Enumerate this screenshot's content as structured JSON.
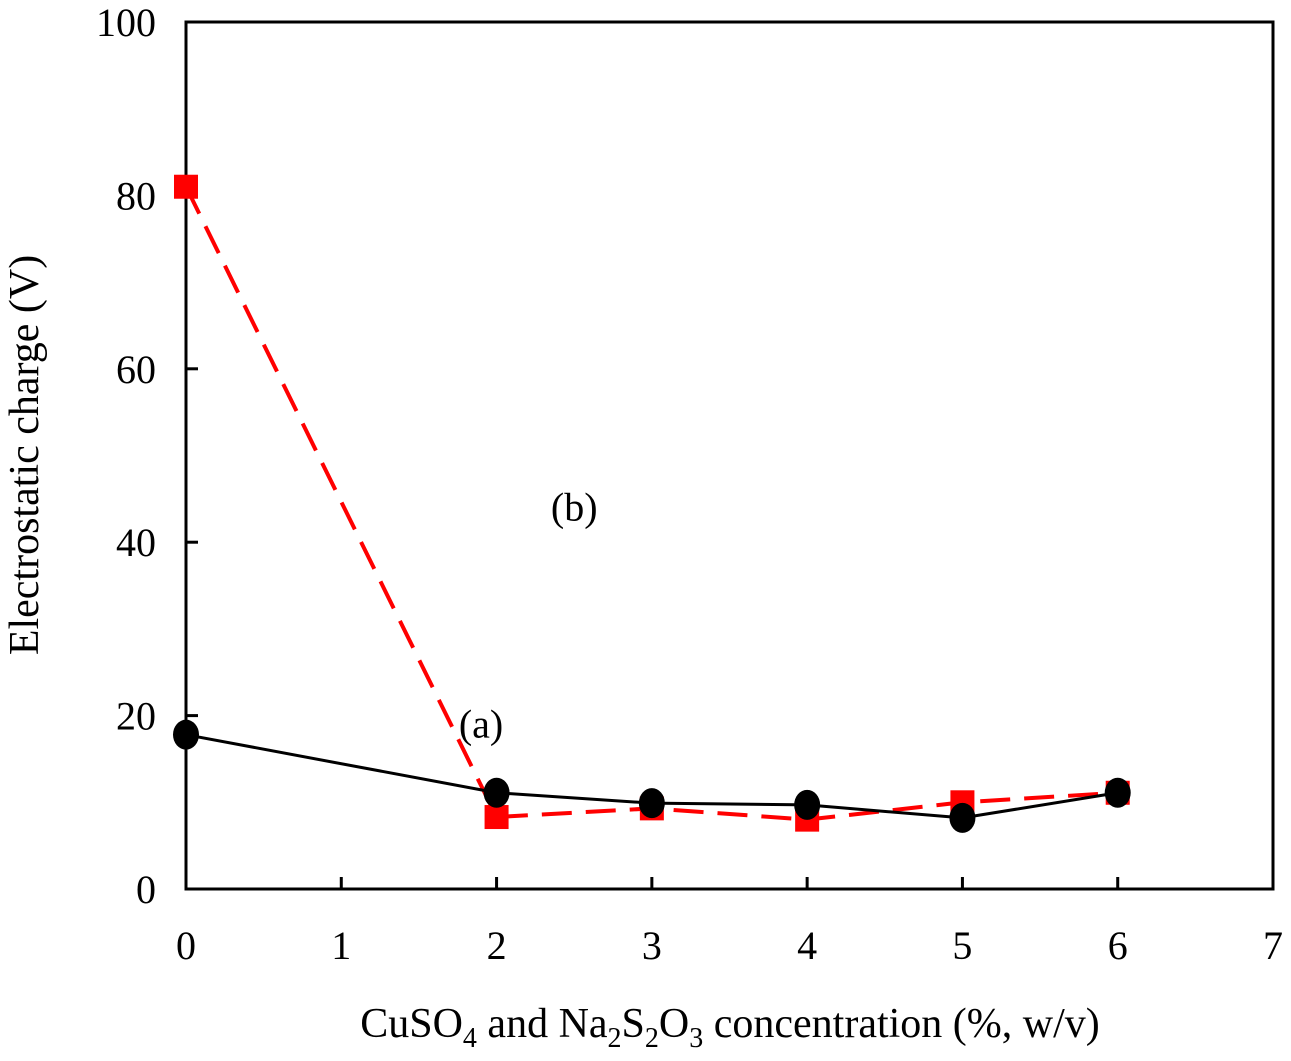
{
  "chart_data": {
    "type": "line",
    "title": "",
    "xlabel_parts": [
      "CuSO",
      "4",
      " and Na",
      "2",
      "S",
      "2",
      "O",
      "3",
      " concentration (%, w/v)"
    ],
    "ylabel": "Electrostatic charge (V)",
    "xlim": [
      0,
      7
    ],
    "ylim": [
      0,
      100
    ],
    "xticks": [
      "0",
      "1",
      "2",
      "3",
      "4",
      "5",
      "6",
      "7"
    ],
    "yticks": [
      "0",
      "20",
      "40",
      "60",
      "80",
      "100"
    ],
    "grid": false,
    "series": [
      {
        "name": "(a)",
        "x": [
          0,
          2,
          3,
          4,
          5,
          6
        ],
        "values": [
          17.8,
          11.1,
          9.9,
          9.7,
          8.2,
          11.1
        ],
        "color": "#000000",
        "style": "solid",
        "marker": "circle",
        "label_at": [
          1.9,
          17.5
        ]
      },
      {
        "name": "(b)",
        "x": [
          0,
          2,
          3,
          4,
          5,
          6
        ],
        "values": [
          81.0,
          8.3,
          9.3,
          8.0,
          10.0,
          11.1
        ],
        "color": "#ff0000",
        "style": "dashed",
        "marker": "square",
        "label_at": [
          2.5,
          42.5
        ]
      }
    ]
  }
}
